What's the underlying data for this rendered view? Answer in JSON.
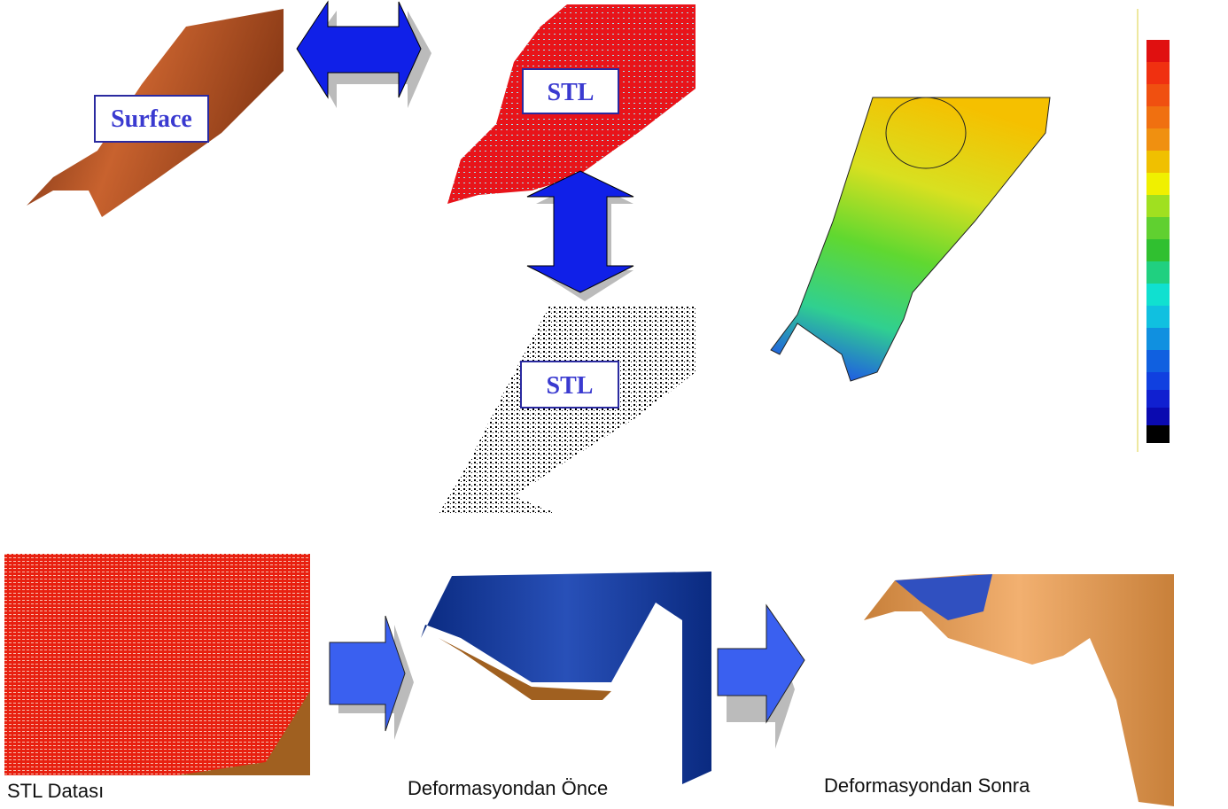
{
  "labels": {
    "surface": "Surface",
    "stl_top": "STL",
    "stl_bottom": "STL"
  },
  "captions": {
    "stl_data": "STL Datası",
    "before": "Deformasyondan Önce",
    "after": "Deformasyondan Sonra"
  }
}
